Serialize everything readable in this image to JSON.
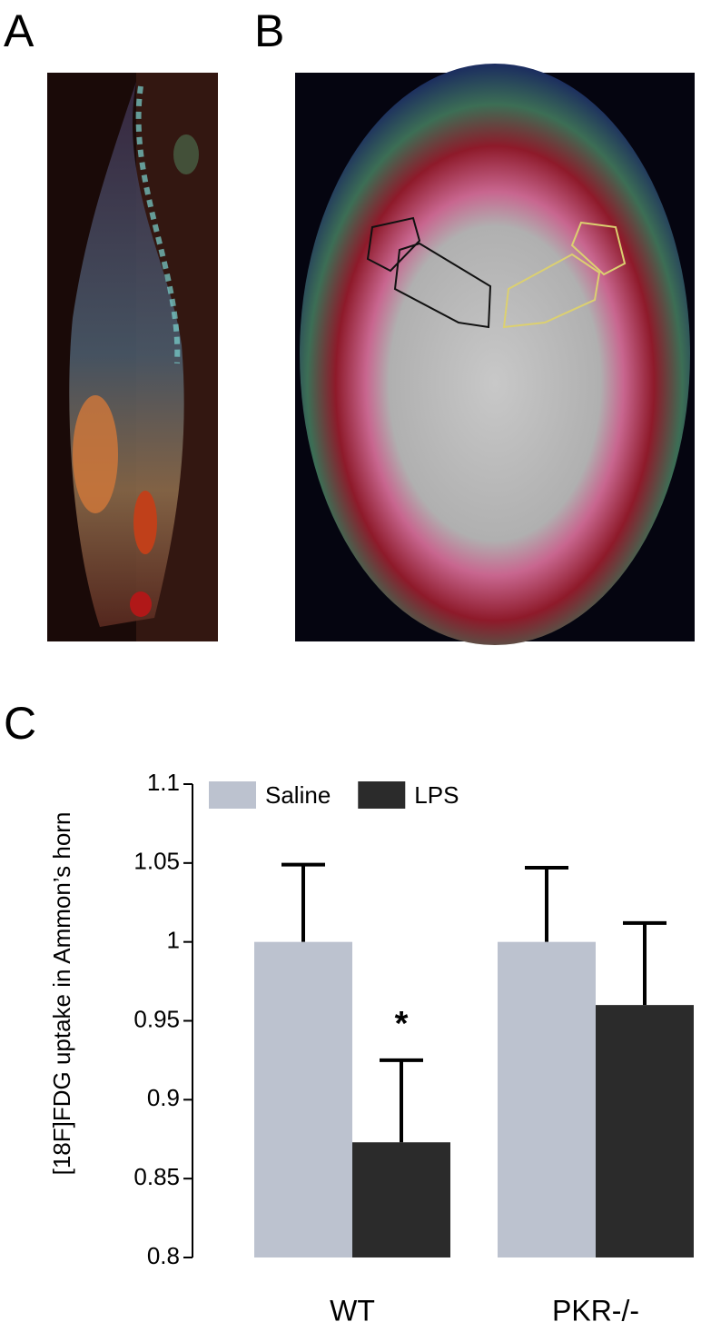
{
  "panel_labels": [
    "A",
    "B",
    "C"
  ],
  "chart_data": {
    "type": "bar",
    "y_label": "[18F]FDG uptake in Ammon’s horn",
    "categories": [
      "WT",
      "PKR-/-"
    ],
    "series": [
      {
        "name": "Saline",
        "color": "#bcc2cf",
        "values": [
          1.0,
          1.0
        ],
        "errors": [
          0.049,
          0.047
        ]
      },
      {
        "name": "LPS",
        "color": "#2b2b2b",
        "values": [
          0.873,
          0.96
        ],
        "errors": [
          0.052,
          0.052
        ]
      }
    ],
    "annotation": "*",
    "ylim": [
      0.8,
      1.1
    ],
    "yticks": [
      0.8,
      0.85,
      0.9,
      0.95,
      1,
      1.05,
      1.1
    ],
    "legend": "top-left",
    "grid": false
  }
}
